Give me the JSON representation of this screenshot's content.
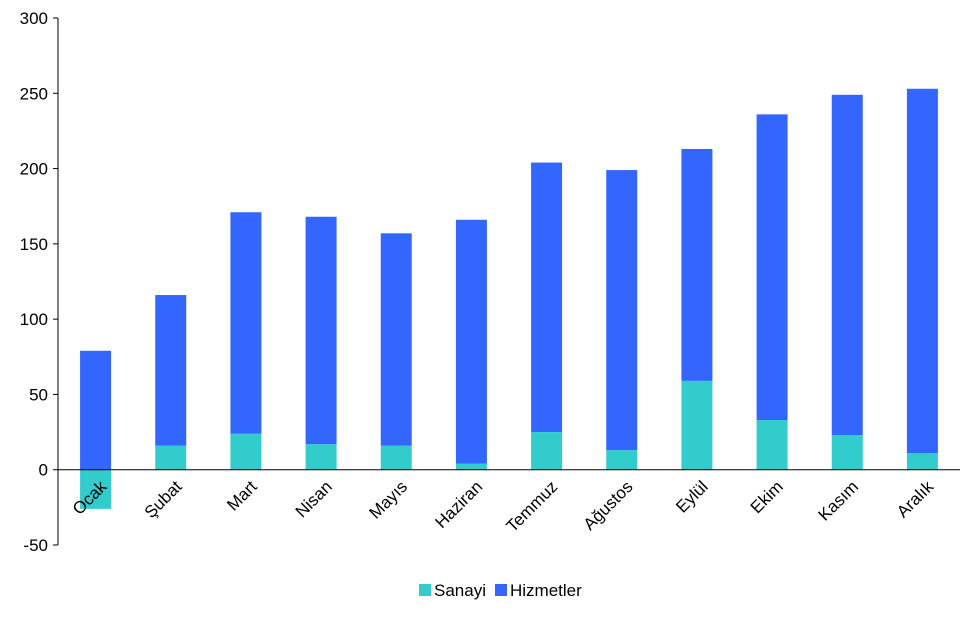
{
  "chart_data": {
    "type": "bar",
    "stacked": true,
    "categories": [
      "Ocak",
      "Şubat",
      "Mart",
      "Nisan",
      "Mayıs",
      "Haziran",
      "Temmuz",
      "Ağustos",
      "Eylül",
      "Ekim",
      "Kasım",
      "Aralık"
    ],
    "series": [
      {
        "name": "Sanayi",
        "color": "#33CCCC",
        "values": [
          -26,
          16,
          24,
          17,
          16,
          4,
          25,
          13,
          59,
          33,
          23,
          11
        ]
      },
      {
        "name": "Hizmetler",
        "color": "#3366FF",
        "values": [
          79,
          100,
          147,
          151,
          141,
          162,
          179,
          186,
          154,
          203,
          226,
          242
        ]
      }
    ],
    "y_ticks": [
      "300",
      "250",
      "200",
      "150",
      "100",
      "50",
      "0",
      "-50"
    ],
    "ylim": [
      -50,
      300
    ],
    "grid": false,
    "legend_position": "bottom"
  }
}
